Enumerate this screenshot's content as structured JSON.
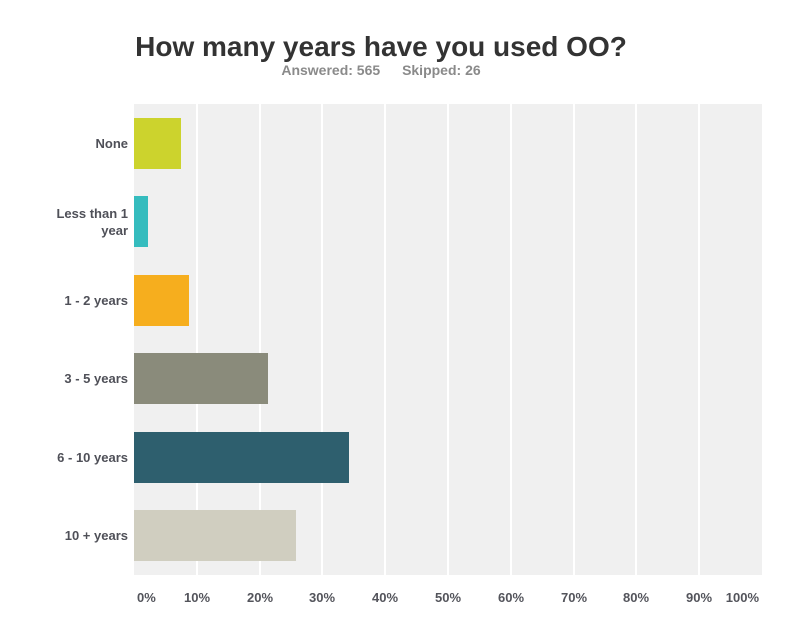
{
  "header": {
    "title": "How many years have you used OO?",
    "answered": "Answered: 565",
    "skipped": "Skipped: 26"
  },
  "chart_data": {
    "type": "bar",
    "orientation": "horizontal",
    "title": "How many years have you used OO?",
    "answered_count": 565,
    "skipped_count": 26,
    "categories": [
      "None",
      "Less than 1 year",
      "1 - 2 years",
      "3 - 5 years",
      "6 - 10 years",
      "10 + years"
    ],
    "values": [
      7.5,
      2.3,
      8.7,
      21.3,
      34.2,
      25.8
    ],
    "value_unit": "percent",
    "bar_colors": [
      "#CCD32D",
      "#35BCBE",
      "#F6AE1E",
      "#8A8B7B",
      "#2E5F6E",
      "#D0CEC0"
    ],
    "xlabel": "",
    "ylabel": "",
    "xlim": [
      0,
      100
    ],
    "x_tick_labels": [
      "0%",
      "10%",
      "20%",
      "30%",
      "40%",
      "50%",
      "60%",
      "70%",
      "80%",
      "90%",
      "100%"
    ],
    "grid": true,
    "legend": "none",
    "plot_background": "#F0F0F0",
    "gridline_color": "#FFFFFF"
  },
  "colors": {
    "page_background": "#FFFFFF",
    "title_text": "#333333",
    "stats_text": "#8A8A8A",
    "category_label_text": "#4F5058",
    "axis_label_text": "#53545B"
  }
}
